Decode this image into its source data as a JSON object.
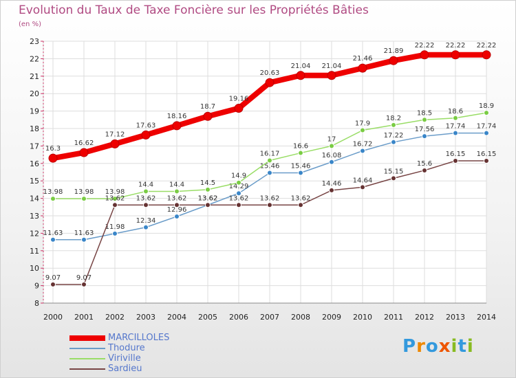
{
  "title": "Evolution du Taux de Taxe Foncière sur les Propriétés Bâties",
  "unit": "(en %)",
  "logo": {
    "text": "Proxiti",
    "letters": [
      {
        "ch": "P",
        "color": "#3399dd"
      },
      {
        "ch": "r",
        "color": "#ee8800"
      },
      {
        "ch": "o",
        "color": "#3399dd"
      },
      {
        "ch": "x",
        "color": "#ee5500"
      },
      {
        "ch": "i",
        "color": "#88bb22"
      },
      {
        "ch": "t",
        "color": "#3399dd"
      },
      {
        "ch": "i",
        "color": "#88bb22"
      }
    ]
  },
  "chart_data": {
    "type": "line",
    "title": "Evolution du Taux de Taxe Foncière sur les Propriétés Bâties",
    "ylabel": "(en %)",
    "xlabel": "",
    "ylim": [
      8,
      23
    ],
    "grid": true,
    "categories": [
      "2000",
      "2001",
      "2002",
      "2003",
      "2004",
      "2005",
      "2006",
      "2007",
      "2008",
      "2009",
      "2010",
      "2011",
      "2012",
      "2013",
      "2014"
    ],
    "yticks": [
      "8",
      "9",
      "10",
      "11",
      "12",
      "13",
      "14",
      "15",
      "16",
      "17",
      "18",
      "19",
      "20",
      "21",
      "22",
      "23"
    ],
    "series": [
      {
        "name": "MARCILLOLES",
        "color": "#ee0000",
        "marker": "#ee0000",
        "emphasis": true,
        "values": [
          16.3,
          16.62,
          17.12,
          17.63,
          18.16,
          18.7,
          19.16,
          20.63,
          21.04,
          21.04,
          21.46,
          21.89,
          22.22,
          22.22,
          22.22
        ],
        "labels": [
          "16.3",
          "16.62",
          "17.12",
          "17.63",
          "18.16",
          "18.7",
          "19.16",
          "20.63",
          "21.04",
          "21.04",
          "21.46",
          "21.89",
          "22.22",
          "22.22",
          "22.22"
        ]
      },
      {
        "name": "Thodure",
        "color": "#6a9cc9",
        "marker": "#3a86c8",
        "emphasis": false,
        "values": [
          11.63,
          11.63,
          11.98,
          12.34,
          12.96,
          13.62,
          14.29,
          15.46,
          15.46,
          16.08,
          16.72,
          17.22,
          17.56,
          17.74,
          17.74
        ],
        "labels": [
          "11.63",
          "11.63",
          "11.98",
          "12.34",
          "12.96",
          "13.62",
          "14.29",
          "15.46",
          "15.46",
          "16.08",
          "16.72",
          "17.22",
          "17.56",
          "17.74",
          "17.74"
        ]
      },
      {
        "name": "Viriville",
        "color": "#99dd66",
        "marker": "#7acc44",
        "emphasis": false,
        "values": [
          13.98,
          13.98,
          13.98,
          14.4,
          14.4,
          14.5,
          14.9,
          16.17,
          16.6,
          17,
          17.9,
          18.2,
          18.5,
          18.6,
          18.9
        ],
        "labels": [
          "13.98",
          "13.98",
          "13.98",
          "14.4",
          "14.4",
          "14.5",
          "14.9",
          "16.17",
          "16.6",
          "17",
          "17.9",
          "18.2",
          "18.5",
          "18.6",
          "18.9"
        ]
      },
      {
        "name": "Sardieu",
        "color": "#774444",
        "marker": "#663333",
        "emphasis": false,
        "values": [
          9.07,
          9.07,
          13.62,
          13.62,
          13.62,
          13.62,
          13.62,
          13.62,
          13.62,
          14.46,
          14.64,
          15.15,
          15.6,
          16.15,
          16.15
        ],
        "labels": [
          "9.07",
          "9.07",
          "13.62",
          "13.62",
          "13.62",
          "13.62",
          "13.62",
          "13.62",
          "13.62",
          "14.46",
          "14.64",
          "15.15",
          "15.6",
          "16.15",
          "16.15"
        ]
      }
    ]
  }
}
